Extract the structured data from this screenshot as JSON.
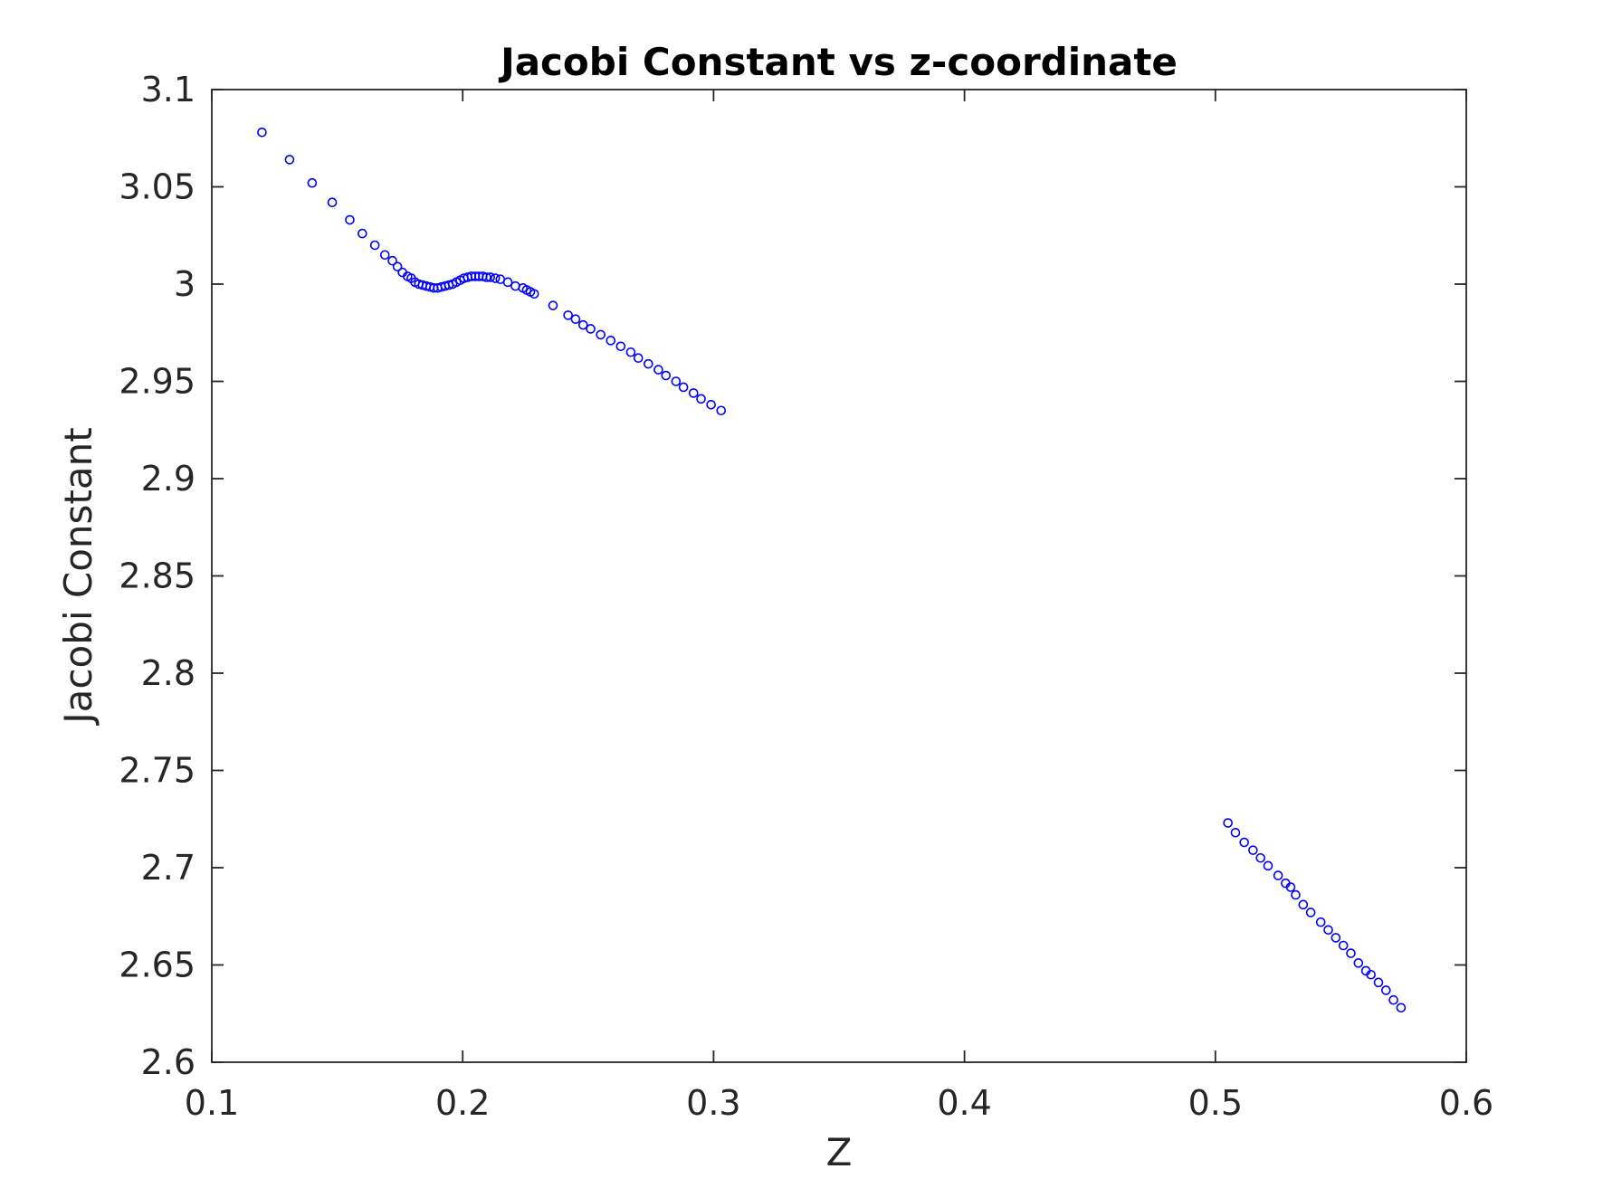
{
  "chart_data": {
    "type": "scatter",
    "title": "Jacobi Constant vs z-coordinate",
    "xlabel": "Z",
    "ylabel": "Jacobi Constant",
    "xlim": [
      0.1,
      0.6
    ],
    "ylim": [
      2.6,
      3.1
    ],
    "xticks": [
      "0.1",
      "0.2",
      "0.3",
      "0.4",
      "0.5",
      "0.6"
    ],
    "yticks": [
      "2.6",
      "2.65",
      "2.7",
      "2.75",
      "2.8",
      "2.85",
      "2.9",
      "2.95",
      "3",
      "3.05",
      "3.1"
    ],
    "grid": false,
    "legend": "none",
    "marker": "open-circle",
    "color": "#0000ff",
    "series": [
      {
        "x": [
          0.12,
          0.131,
          0.14,
          0.148,
          0.155,
          0.16,
          0.165,
          0.169,
          0.172,
          0.174,
          0.176,
          0.178,
          0.1795,
          0.181,
          0.1825,
          0.184,
          0.1855,
          0.187,
          0.1885,
          0.19,
          0.1915,
          0.193,
          0.1945,
          0.196,
          0.1975,
          0.199,
          0.2005,
          0.202,
          0.2035,
          0.205,
          0.2065,
          0.208,
          0.2095,
          0.211,
          0.213,
          0.215,
          0.218,
          0.221,
          0.224,
          0.2255,
          0.227,
          0.2285,
          0.236,
          0.242,
          0.245,
          0.248,
          0.251,
          0.255,
          0.259,
          0.263,
          0.267,
          0.27,
          0.274,
          0.278,
          0.281,
          0.285,
          0.288,
          0.292,
          0.295,
          0.299,
          0.303
        ],
        "y": [
          3.078,
          3.064,
          3.052,
          3.042,
          3.033,
          3.026,
          3.02,
          3.015,
          3.012,
          3.009,
          3.006,
          3.004,
          3.003,
          3.001,
          3.0,
          2.9995,
          2.999,
          2.9985,
          2.998,
          2.998,
          2.9985,
          2.999,
          2.9995,
          3.0,
          3.001,
          3.002,
          3.003,
          3.0035,
          3.004,
          3.004,
          3.004,
          3.004,
          3.0035,
          3.0035,
          3.003,
          3.0025,
          3.001,
          2.999,
          2.998,
          2.997,
          2.996,
          2.995,
          2.989,
          2.984,
          2.982,
          2.979,
          2.977,
          2.974,
          2.971,
          2.968,
          2.965,
          2.962,
          2.959,
          2.956,
          2.953,
          2.95,
          2.947,
          2.944,
          2.941,
          2.938,
          2.935
        ]
      },
      {
        "x": [
          0.505,
          0.508,
          0.5115,
          0.515,
          0.518,
          0.521,
          0.525,
          0.528,
          0.53,
          0.532,
          0.535,
          0.538,
          0.542,
          0.545,
          0.548,
          0.551,
          0.554,
          0.557,
          0.56,
          0.562,
          0.565,
          0.568,
          0.571,
          0.574
        ],
        "y": [
          2.723,
          2.718,
          2.713,
          2.709,
          2.705,
          2.701,
          2.696,
          2.692,
          2.69,
          2.686,
          2.681,
          2.677,
          2.672,
          2.668,
          2.664,
          2.66,
          2.656,
          2.651,
          2.647,
          2.645,
          2.641,
          2.637,
          2.632,
          2.628
        ]
      }
    ]
  }
}
